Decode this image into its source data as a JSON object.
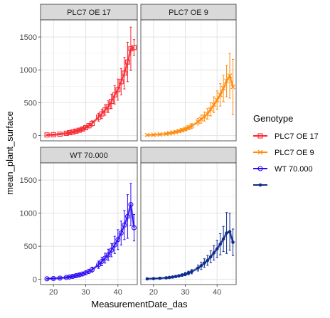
{
  "chart_data": {
    "type": "line",
    "x_label": "MeasurementDate_das",
    "y_label": "mean_plant_surface",
    "x_ticks": [
      20,
      30,
      40
    ],
    "y_ticks": [
      0,
      500,
      1000,
      1500
    ],
    "xlim": [
      16,
      46
    ],
    "ylim": [
      -80,
      1760
    ],
    "legend": {
      "title": "Genotype",
      "placement": "right",
      "entries": [
        {
          "label": "PLC7 OE 17",
          "color": "#f8272f",
          "marker": "square"
        },
        {
          "label": "PLC7 OE 9",
          "color": "#ff8c0d",
          "marker": "cross"
        },
        {
          "label": "WT 70.000",
          "color": "#2e0df5",
          "marker": "circle"
        },
        {
          "label": "",
          "color": "#0e2c8c",
          "marker": "dot"
        }
      ]
    },
    "panels": [
      {
        "strip": "PLC7 OE 17",
        "color": "#f8272f",
        "marker": "square",
        "points": [
          {
            "x": 18,
            "y": 10,
            "err": 8
          },
          {
            "x": 20,
            "y": 14,
            "err": 8
          },
          {
            "x": 22,
            "y": 22,
            "err": 10
          },
          {
            "x": 24,
            "y": 35,
            "err": 12
          },
          {
            "x": 25,
            "y": 45,
            "err": 14
          },
          {
            "x": 26,
            "y": 55,
            "err": 16
          },
          {
            "x": 27,
            "y": 68,
            "err": 18
          },
          {
            "x": 28,
            "y": 82,
            "err": 20
          },
          {
            "x": 29,
            "y": 100,
            "err": 24
          },
          {
            "x": 30,
            "y": 120,
            "err": 28
          },
          {
            "x": 31,
            "y": 150,
            "err": 35
          },
          {
            "x": 32,
            "y": 185,
            "err": 40
          },
          {
            "x": 34,
            "y": 280,
            "err": 60
          },
          {
            "x": 35,
            "y": 330,
            "err": 70
          },
          {
            "x": 36,
            "y": 390,
            "err": 80
          },
          {
            "x": 37,
            "y": 440,
            "err": 90
          },
          {
            "x": 38,
            "y": 520,
            "err": 110
          },
          {
            "x": 39,
            "y": 620,
            "err": 140
          },
          {
            "x": 40,
            "y": 700,
            "err": 160
          },
          {
            "x": 41,
            "y": 820,
            "err": 200
          },
          {
            "x": 42,
            "y": 950,
            "err": 240
          },
          {
            "x": 43,
            "y": 1120,
            "err": 300
          },
          {
            "x": 44,
            "y": 1320,
            "err": 330
          },
          {
            "x": 45,
            "y": 1340,
            "err": 120
          }
        ]
      },
      {
        "strip": "PLC7 OE 9",
        "color": "#ff8c0d",
        "marker": "cross",
        "points": [
          {
            "x": 18,
            "y": 8,
            "err": 6
          },
          {
            "x": 20,
            "y": 12,
            "err": 8
          },
          {
            "x": 22,
            "y": 18,
            "err": 10
          },
          {
            "x": 24,
            "y": 28,
            "err": 12
          },
          {
            "x": 25,
            "y": 36,
            "err": 14
          },
          {
            "x": 26,
            "y": 45,
            "err": 16
          },
          {
            "x": 27,
            "y": 56,
            "err": 18
          },
          {
            "x": 28,
            "y": 68,
            "err": 20
          },
          {
            "x": 29,
            "y": 82,
            "err": 24
          },
          {
            "x": 30,
            "y": 100,
            "err": 28
          },
          {
            "x": 31,
            "y": 120,
            "err": 32
          },
          {
            "x": 32,
            "y": 145,
            "err": 38
          },
          {
            "x": 34,
            "y": 210,
            "err": 50
          },
          {
            "x": 35,
            "y": 250,
            "err": 60
          },
          {
            "x": 36,
            "y": 290,
            "err": 70
          },
          {
            "x": 37,
            "y": 330,
            "err": 80
          },
          {
            "x": 38,
            "y": 400,
            "err": 100
          },
          {
            "x": 39,
            "y": 470,
            "err": 120
          },
          {
            "x": 40,
            "y": 540,
            "err": 140
          },
          {
            "x": 41,
            "y": 620,
            "err": 170
          },
          {
            "x": 42,
            "y": 720,
            "err": 200
          },
          {
            "x": 43,
            "y": 830,
            "err": 240
          },
          {
            "x": 44,
            "y": 910,
            "err": 340
          },
          {
            "x": 45,
            "y": 740,
            "err": 420
          }
        ]
      },
      {
        "strip": "WT 70.000",
        "color": "#2e0df5",
        "marker": "circle",
        "points": [
          {
            "x": 18,
            "y": 8,
            "err": 6
          },
          {
            "x": 20,
            "y": 12,
            "err": 8
          },
          {
            "x": 22,
            "y": 18,
            "err": 10
          },
          {
            "x": 24,
            "y": 28,
            "err": 12
          },
          {
            "x": 25,
            "y": 35,
            "err": 14
          },
          {
            "x": 26,
            "y": 44,
            "err": 16
          },
          {
            "x": 27,
            "y": 55,
            "err": 18
          },
          {
            "x": 28,
            "y": 66,
            "err": 20
          },
          {
            "x": 29,
            "y": 80,
            "err": 24
          },
          {
            "x": 30,
            "y": 98,
            "err": 28
          },
          {
            "x": 31,
            "y": 120,
            "err": 32
          },
          {
            "x": 32,
            "y": 145,
            "err": 38
          },
          {
            "x": 34,
            "y": 220,
            "err": 55
          },
          {
            "x": 35,
            "y": 270,
            "err": 65
          },
          {
            "x": 36,
            "y": 320,
            "err": 75
          },
          {
            "x": 37,
            "y": 370,
            "err": 85
          },
          {
            "x": 38,
            "y": 440,
            "err": 100
          },
          {
            "x": 39,
            "y": 520,
            "err": 130
          },
          {
            "x": 40,
            "y": 600,
            "err": 150
          },
          {
            "x": 41,
            "y": 700,
            "err": 180
          },
          {
            "x": 42,
            "y": 820,
            "err": 220
          },
          {
            "x": 43,
            "y": 950,
            "err": 330
          },
          {
            "x": 44,
            "y": 1130,
            "err": 320
          },
          {
            "x": 45,
            "y": 780,
            "err": 200
          }
        ]
      },
      {
        "strip": "",
        "color": "#0e2c8c",
        "marker": "dot",
        "points": [
          {
            "x": 18,
            "y": 6,
            "err": 5
          },
          {
            "x": 20,
            "y": 10,
            "err": 6
          },
          {
            "x": 22,
            "y": 15,
            "err": 8
          },
          {
            "x": 24,
            "y": 22,
            "err": 10
          },
          {
            "x": 25,
            "y": 28,
            "err": 12
          },
          {
            "x": 26,
            "y": 34,
            "err": 14
          },
          {
            "x": 27,
            "y": 42,
            "err": 16
          },
          {
            "x": 28,
            "y": 52,
            "err": 18
          },
          {
            "x": 29,
            "y": 64,
            "err": 20
          },
          {
            "x": 30,
            "y": 78,
            "err": 24
          },
          {
            "x": 31,
            "y": 95,
            "err": 28
          },
          {
            "x": 32,
            "y": 115,
            "err": 32
          },
          {
            "x": 34,
            "y": 170,
            "err": 45
          },
          {
            "x": 35,
            "y": 205,
            "err": 55
          },
          {
            "x": 36,
            "y": 245,
            "err": 65
          },
          {
            "x": 37,
            "y": 285,
            "err": 75
          },
          {
            "x": 38,
            "y": 340,
            "err": 90
          },
          {
            "x": 39,
            "y": 400,
            "err": 110
          },
          {
            "x": 40,
            "y": 460,
            "err": 130
          },
          {
            "x": 41,
            "y": 530,
            "err": 160
          },
          {
            "x": 42,
            "y": 610,
            "err": 190
          },
          {
            "x": 43,
            "y": 700,
            "err": 310
          },
          {
            "x": 44,
            "y": 720,
            "err": 280
          },
          {
            "x": 45,
            "y": 560,
            "err": 200
          }
        ]
      }
    ]
  }
}
